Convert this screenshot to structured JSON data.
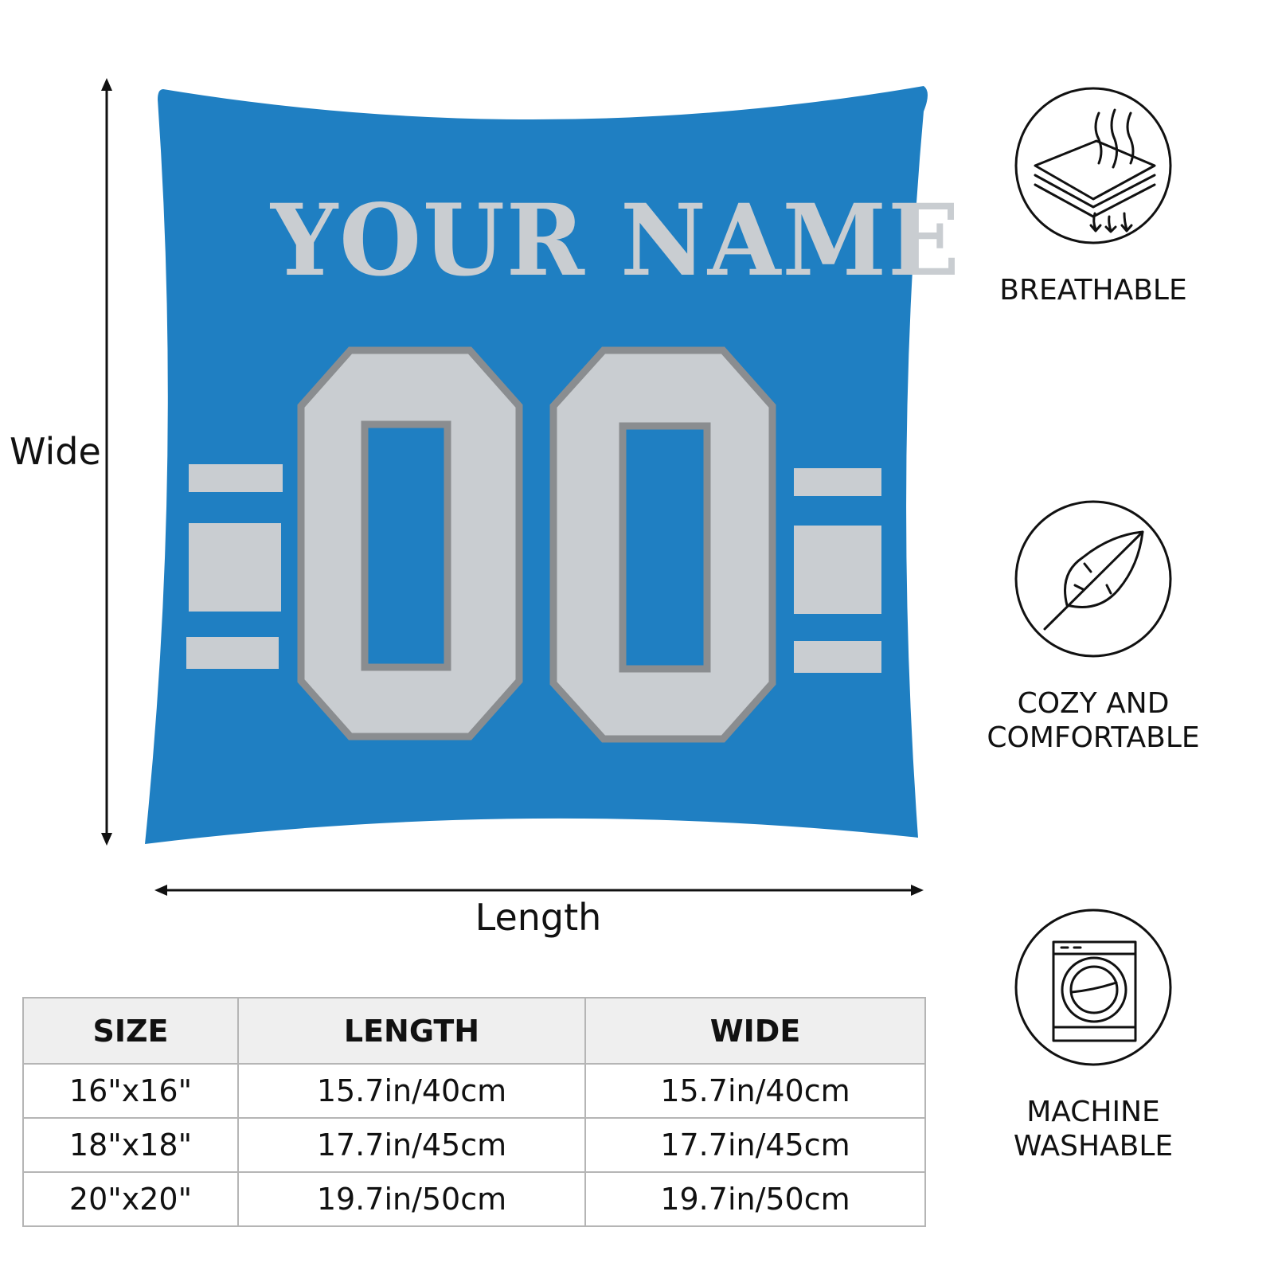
{
  "product": {
    "name_text": "YOUR NAME",
    "number_text": "00",
    "pillow_color": "#1f7fc2",
    "lettering_color": "#c9cdd1",
    "outline_color": "#8a8d90"
  },
  "dimensions": {
    "vertical_label": "Wide",
    "horizontal_label": "Length"
  },
  "size_table": {
    "headers": [
      "SIZE",
      "LENGTH",
      "WIDE"
    ],
    "rows": [
      [
        "16\"x16\"",
        "15.7in/40cm",
        "15.7in/40cm"
      ],
      [
        "18\"x18\"",
        "17.7in/45cm",
        "17.7in/45cm"
      ],
      [
        "20\"x20\"",
        "19.7in/50cm",
        "19.7in/50cm"
      ]
    ]
  },
  "features": [
    {
      "icon": "breathable-layers-icon",
      "line1": "BREATHABLE",
      "line2": ""
    },
    {
      "icon": "feather-icon",
      "line1": "COZY AND",
      "line2": "COMFORTABLE"
    },
    {
      "icon": "washing-machine-icon",
      "line1": "MACHINE",
      "line2": "WASHABLE"
    }
  ]
}
